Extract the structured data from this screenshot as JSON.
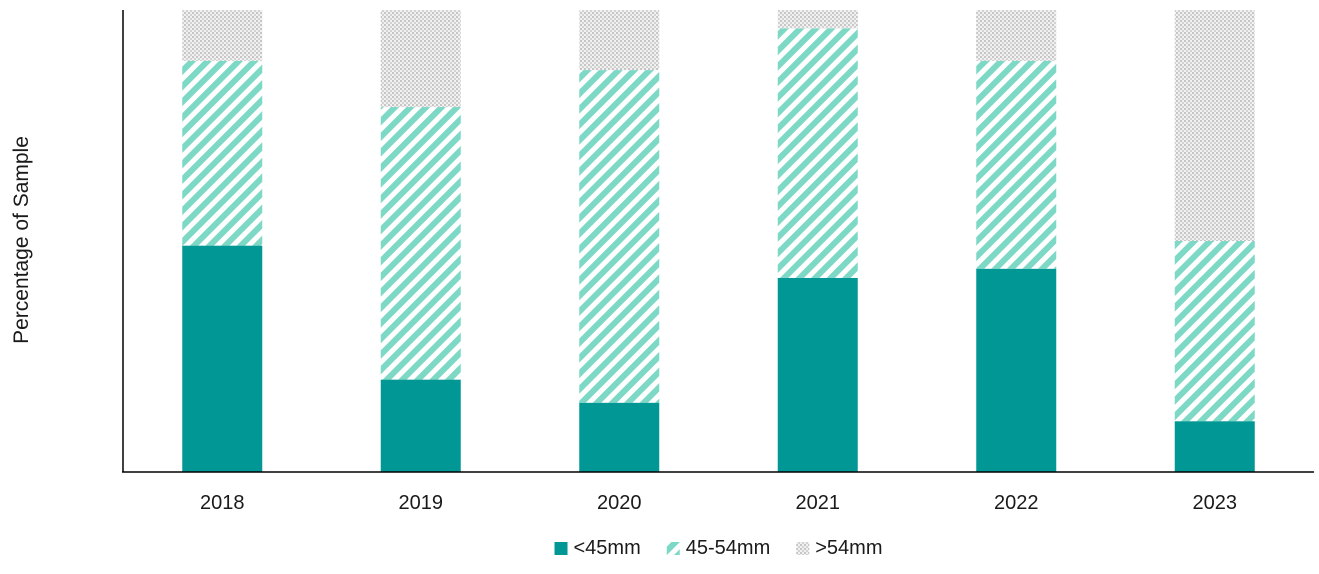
{
  "chart_data": {
    "type": "bar",
    "stacked": true,
    "normalized": true,
    "title": "",
    "xlabel": "",
    "ylabel": "Percentage of Sample",
    "ylim": [
      0,
      100
    ],
    "grid": false,
    "legend_position": "bottom-center",
    "categories": [
      "2018",
      "2019",
      "2020",
      "2021",
      "2022",
      "2023"
    ],
    "series": [
      {
        "name": "<45mm",
        "values": [
          49,
          20,
          15,
          42,
          44,
          11
        ],
        "color": "#009794",
        "fill": "solid"
      },
      {
        "name": "45-54mm",
        "values": [
          40,
          59,
          72,
          54,
          45,
          39
        ],
        "color": "#7dd9c6",
        "fill": "diagonal-stripes"
      },
      {
        "name": ">54mm",
        "values": [
          11,
          21,
          13,
          4,
          11,
          50
        ],
        "color": "#b0b0b0",
        "fill": "dots"
      }
    ]
  }
}
